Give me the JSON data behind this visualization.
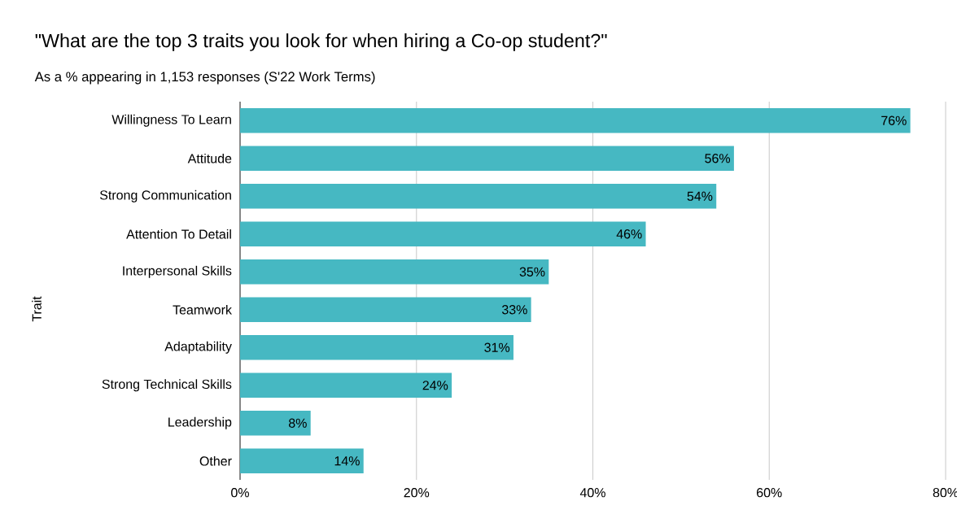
{
  "chart_data": {
    "type": "bar",
    "orientation": "horizontal",
    "title": "\"What are the top 3 traits you look for when hiring a Co-op student?\"",
    "subtitle": "As a % appearing in 1,153 responses (S'22 Work Terms)",
    "ylabel": "Trait",
    "categories": [
      "Willingness To Learn",
      "Attitude",
      "Strong Communication",
      "Attention To Detail",
      "Interpersonal Skills",
      "Teamwork",
      "Adaptability",
      "Strong Technical Skills",
      "Leadership",
      "Other"
    ],
    "values": [
      76,
      56,
      54,
      46,
      35,
      33,
      31,
      24,
      8,
      14
    ],
    "value_labels": [
      "76%",
      "56%",
      "54%",
      "46%",
      "35%",
      "33%",
      "31%",
      "24%",
      "8%",
      "14%"
    ],
    "color": "#46b8c2",
    "xlim": [
      0,
      80
    ],
    "xticks": [
      {
        "value": 0,
        "label": "0%"
      },
      {
        "value": 20,
        "label": "20%"
      },
      {
        "value": 40,
        "label": "40%"
      },
      {
        "value": 60,
        "label": "60%"
      },
      {
        "value": 80,
        "label": "80%"
      }
    ],
    "grid": "x"
  }
}
